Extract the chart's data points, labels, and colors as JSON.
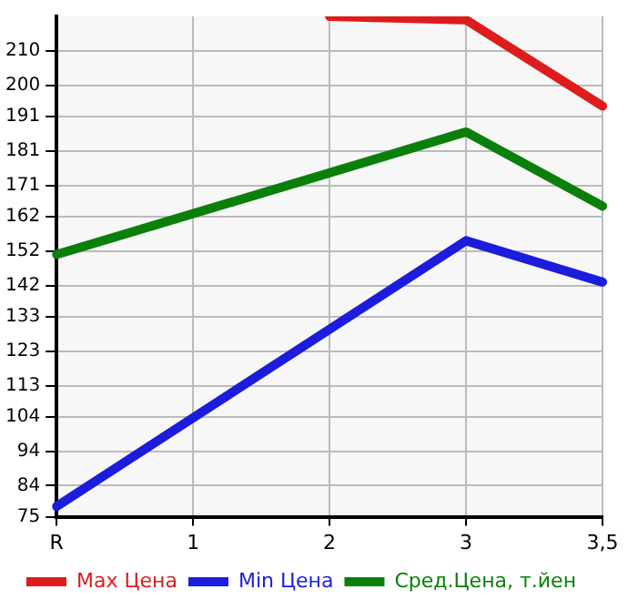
{
  "chart_data": {
    "type": "line",
    "categories": [
      "R",
      "1",
      "2",
      "3",
      "3,5"
    ],
    "series": [
      {
        "name": "Max Цена",
        "color": "#dd1c1c",
        "values": [
          null,
          null,
          220,
          219,
          194
        ]
      },
      {
        "name": "Min Цена",
        "color": "#1c1cdd",
        "values": [
          78,
          null,
          null,
          155,
          143
        ]
      },
      {
        "name": "Сред.Цена, т.йен",
        "color": "#0a800a",
        "values": [
          151,
          null,
          null,
          186.5,
          165
        ]
      }
    ],
    "ylim": [
      75,
      220
    ],
    "yticks": [
      75,
      84,
      94,
      104,
      113,
      123,
      133,
      142,
      152,
      162,
      171,
      181,
      191,
      200,
      210
    ],
    "grid": true,
    "legend": "bottom",
    "marker": "none",
    "line_style": "solid"
  }
}
